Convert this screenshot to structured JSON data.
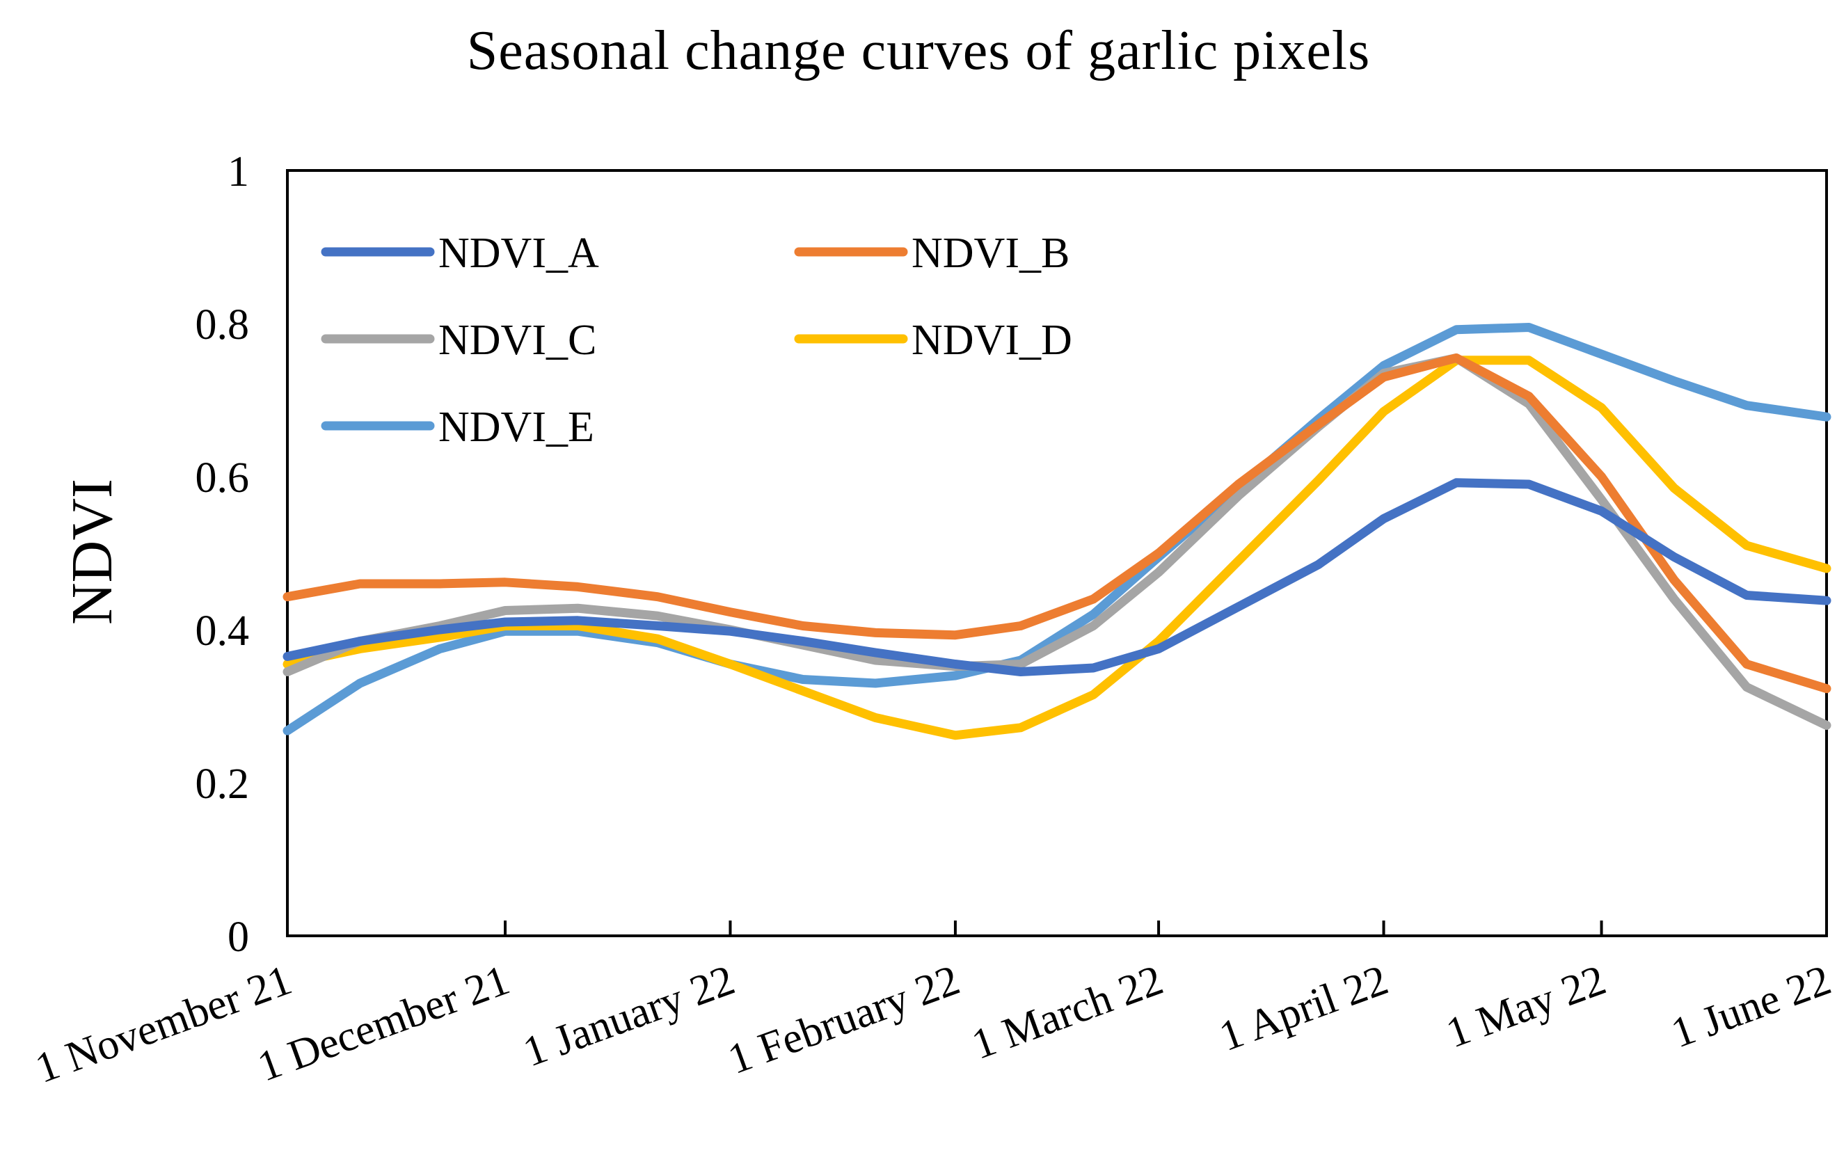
{
  "chart_data": {
    "type": "line",
    "title": "Seasonal change curves of garlic pixels",
    "xlabel": "",
    "ylabel": "NDVI",
    "ylim": [
      0,
      1
    ],
    "yticks": [
      "0",
      "0.2",
      "0.4",
      "0.6",
      "0.8",
      "1"
    ],
    "xticks": [
      "1 November 21",
      "1 December 21",
      "1 January 22",
      "1 February 22",
      "1 March 22",
      "1 April 22",
      "1 May 22",
      "1 June 22"
    ],
    "xrange_days": [
      0,
      212
    ],
    "xtick_days": [
      0,
      30,
      61,
      92,
      120,
      151,
      181,
      212
    ],
    "x_days": [
      0,
      10,
      21,
      30,
      40,
      51,
      61,
      71,
      81,
      92,
      101,
      111,
      120,
      131,
      142,
      151,
      161,
      171,
      181,
      191,
      201,
      212
    ],
    "series": [
      {
        "name": "NDVI_A",
        "color": "#4472C4",
        "values": [
          0.365,
          0.385,
          0.4,
          0.41,
          0.412,
          0.405,
          0.398,
          0.385,
          0.37,
          0.355,
          0.345,
          0.35,
          0.375,
          0.43,
          0.485,
          0.545,
          0.592,
          0.59,
          0.555,
          0.495,
          0.445,
          0.438
        ]
      },
      {
        "name": "NDVI_B",
        "color": "#ED7D31",
        "values": [
          0.443,
          0.46,
          0.46,
          0.462,
          0.456,
          0.443,
          0.423,
          0.405,
          0.396,
          0.393,
          0.405,
          0.44,
          0.5,
          0.59,
          0.668,
          0.73,
          0.755,
          0.705,
          0.6,
          0.465,
          0.355,
          0.323
        ]
      },
      {
        "name": "NDVI_C",
        "color": "#A5A5A5",
        "values": [
          0.345,
          0.385,
          0.405,
          0.425,
          0.428,
          0.418,
          0.4,
          0.38,
          0.36,
          0.352,
          0.355,
          0.405,
          0.475,
          0.575,
          0.665,
          0.735,
          0.755,
          0.695,
          0.57,
          0.44,
          0.325,
          0.275
        ]
      },
      {
        "name": "NDVI_D",
        "color": "#FFC000",
        "values": [
          0.355,
          0.375,
          0.39,
          0.405,
          0.405,
          0.388,
          0.355,
          0.32,
          0.285,
          0.262,
          0.272,
          0.315,
          0.385,
          0.49,
          0.595,
          0.685,
          0.752,
          0.752,
          0.69,
          0.585,
          0.51,
          0.48
        ]
      },
      {
        "name": "NDVI_E",
        "color": "#5B9BD5",
        "values": [
          0.268,
          0.33,
          0.375,
          0.398,
          0.398,
          0.383,
          0.355,
          0.335,
          0.33,
          0.34,
          0.36,
          0.42,
          0.495,
          0.585,
          0.675,
          0.745,
          0.792,
          0.795,
          0.76,
          0.725,
          0.693,
          0.678
        ]
      }
    ],
    "legend": [
      "NDVI_A",
      "NDVI_B",
      "NDVI_C",
      "NDVI_D",
      "NDVI_E"
    ],
    "legend_position": "top-left",
    "grid": false
  }
}
